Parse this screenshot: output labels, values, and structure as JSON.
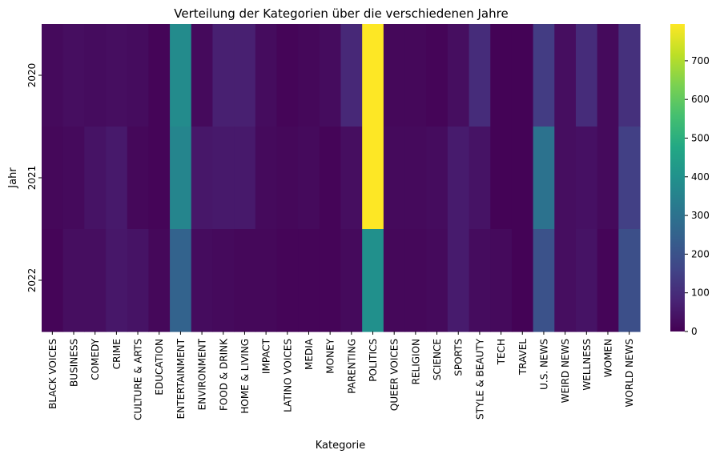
{
  "chart_data": {
    "type": "heatmap",
    "title": "Verteilung der Kategorien über die verschiedenen Jahre",
    "xlabel": "Kategorie",
    "ylabel": "Jahr",
    "colormap": "viridis",
    "colorbar": {
      "min": 0,
      "max": 795,
      "ticks": [
        0,
        100,
        200,
        300,
        400,
        500,
        600,
        700
      ]
    },
    "x_categories": [
      "BLACK VOICES",
      "BUSINESS",
      "COMEDY",
      "CRIME",
      "CULTURE & ARTS",
      "EDUCATION",
      "ENTERTAINMENT",
      "ENVIRONMENT",
      "FOOD & DRINK",
      "HOME & LIVING",
      "IMPACT",
      "LATINO VOICES",
      "MEDIA",
      "MONEY",
      "PARENTING",
      "POLITICS",
      "QUEER VOICES",
      "RELIGION",
      "SCIENCE",
      "SPORTS",
      "STYLE & BEAUTY",
      "TECH",
      "TRAVEL",
      "U.S. NEWS",
      "WEIRD NEWS",
      "WELLNESS",
      "WOMEN",
      "WORLD NEWS"
    ],
    "y_categories": [
      "2020",
      "2021",
      "2022"
    ],
    "values": [
      [
        20,
        30,
        25,
        30,
        25,
        10,
        380,
        20,
        70,
        70,
        25,
        10,
        15,
        25,
        90,
        795,
        15,
        15,
        10,
        30,
        100,
        5,
        5,
        140,
        30,
        100,
        20,
        110
      ],
      [
        15,
        20,
        40,
        55,
        15,
        10,
        360,
        50,
        55,
        55,
        20,
        15,
        20,
        10,
        30,
        795,
        20,
        20,
        25,
        60,
        40,
        5,
        5,
        300,
        30,
        35,
        20,
        150
      ],
      [
        10,
        30,
        30,
        50,
        40,
        15,
        250,
        25,
        20,
        15,
        15,
        10,
        10,
        10,
        20,
        395,
        15,
        15,
        20,
        60,
        25,
        20,
        5,
        200,
        30,
        40,
        10,
        190
      ]
    ]
  }
}
